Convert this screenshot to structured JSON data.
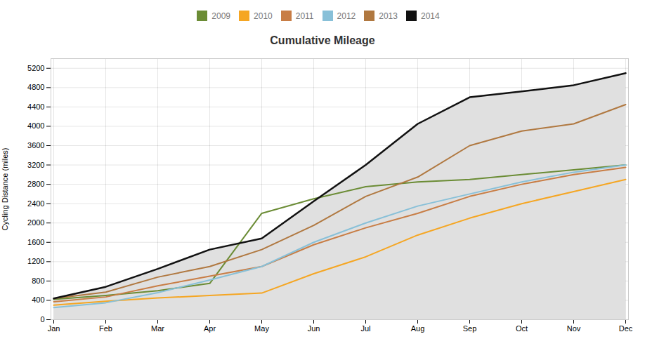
{
  "chart_data": {
    "type": "line",
    "title": "Cumulative Mileage",
    "y_label": "Cycling Distance (miles)",
    "categories": [
      "Jan",
      "Feb",
      "Mar",
      "Apr",
      "May",
      "Jun",
      "Jul",
      "Aug",
      "Sep",
      "Oct",
      "Nov",
      "Dec"
    ],
    "series": [
      {
        "name": "2009",
        "color": "#6b8c35",
        "values": [
          420,
          500,
          600,
          750,
          2200,
          2500,
          2750,
          2850,
          2900,
          3000,
          3100,
          3200
        ]
      },
      {
        "name": "2010",
        "color": "#f5a623",
        "values": [
          300,
          380,
          450,
          500,
          550,
          950,
          1300,
          1750,
          2100,
          2400,
          2650,
          2900
        ]
      },
      {
        "name": "2011",
        "color": "#c87d45",
        "values": [
          370,
          470,
          700,
          900,
          1100,
          1550,
          1900,
          2200,
          2550,
          2800,
          3000,
          3150
        ]
      },
      {
        "name": "2012",
        "color": "#88c0d8",
        "values": [
          250,
          350,
          560,
          820,
          1100,
          1600,
          2000,
          2350,
          2600,
          2850,
          3050,
          3200
        ]
      },
      {
        "name": "2013",
        "color": "#b07840",
        "values": [
          440,
          570,
          880,
          1100,
          1450,
          1950,
          2550,
          2950,
          3600,
          3900,
          4050,
          4450
        ]
      },
      {
        "name": "2014",
        "color": "#111111",
        "type": "area",
        "values": [
          440,
          680,
          1050,
          1450,
          1680,
          2450,
          3200,
          4050,
          4600,
          4720,
          4850,
          5100
        ]
      }
    ],
    "ylim": [
      0,
      5400
    ],
    "yticks": [
      0,
      400,
      800,
      1200,
      1600,
      2000,
      2400,
      2800,
      3200,
      3600,
      4000,
      4400,
      4800,
      5200
    ],
    "grid": true,
    "legend": "top"
  }
}
